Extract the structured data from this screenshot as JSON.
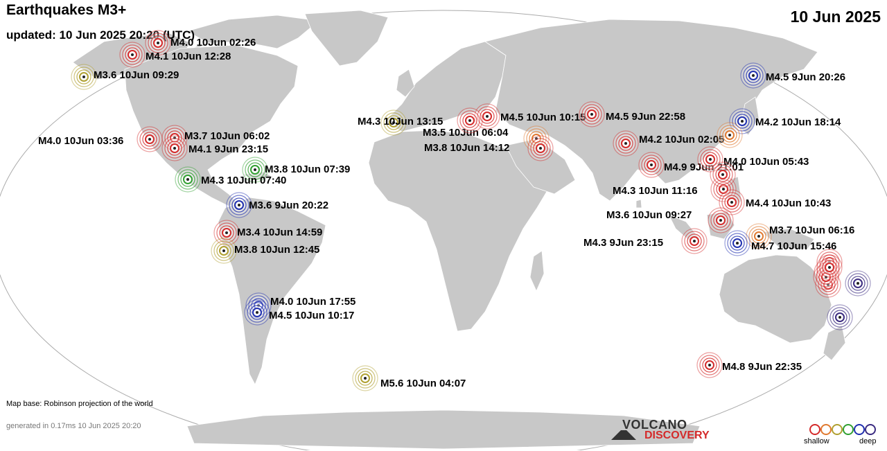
{
  "header": {
    "title": "Earthquakes M3+",
    "updated": "updated: 10 Jun 2025 20:20 (UTC)",
    "date": "10 Jun 2025"
  },
  "footer": {
    "map_base": "Map base: Robinson projection of the world",
    "generated": "generated in 0.17ms 10 Jun 2025 20:20",
    "logo_top": "VOLCANO",
    "logo_bottom": "DISCOVERY",
    "legend_shallow": "shallow",
    "legend_deep": "deep"
  },
  "colors": {
    "ocean": "#ffffff",
    "land": "#c8c8c8",
    "border": "#ffffff",
    "frame": "#aaaaaa",
    "depth": [
      "#d42a2a",
      "#e07a30",
      "#b0a030",
      "#30a030",
      "#1f2fb0",
      "#3a2a80"
    ]
  },
  "quakes": [
    {
      "label": "M4.0 10Jun 02:26",
      "depth": 0
    },
    {
      "label": "M4.1 10Jun 12:28",
      "depth": 0
    },
    {
      "label": "M3.6 10Jun 09:29",
      "depth": 2
    },
    {
      "label": "M3.7 10Jun 06:02",
      "depth": 0
    },
    {
      "label": "M4.0 10Jun 03:36",
      "depth": 0
    },
    {
      "label": "M4.1  9Jun 23:15",
      "depth": 0
    },
    {
      "label": "M3.8 10Jun 07:39",
      "depth": 3
    },
    {
      "label": "M4.3 10Jun 07:40",
      "depth": 3
    },
    {
      "label": "M3.6  9Jun 20:22",
      "depth": 4
    },
    {
      "label": "M3.4 10Jun 14:59",
      "depth": 0
    },
    {
      "label": "M3.8 10Jun 12:45",
      "depth": 2
    },
    {
      "label": "M4.0 10Jun 17:55",
      "depth": 4
    },
    {
      "label": "M4.5 10Jun 10:17",
      "depth": 4
    },
    {
      "label": "M5.6 10Jun 04:07",
      "depth": 2
    },
    {
      "label": "M4.3 10Jun 13:15",
      "depth": 2
    },
    {
      "label": "M4.5 10Jun 10:15",
      "depth": 0
    },
    {
      "label": "M3.5 10Jun 06:04",
      "depth": 1
    },
    {
      "label": "M3.8 10Jun 14:12",
      "depth": 0
    },
    {
      "label": "M4.5  9Jun 22:58",
      "depth": 0
    },
    {
      "label": "M4.2 10Jun 02:05",
      "depth": 0
    },
    {
      "label": "M4.9  9Jun 21:01",
      "depth": 0
    },
    {
      "label": "M4.5  9Jun 20:26",
      "depth": 4
    },
    {
      "label": "M4.2 10Jun 18:14",
      "depth": 4
    },
    {
      "label": "M4.0 10Jun 05:43",
      "depth": 0
    },
    {
      "label": "M4.3 10Jun 11:16",
      "depth": 0
    },
    {
      "label": "M4.4 10Jun 10:43",
      "depth": 0
    },
    {
      "label": "M3.6 10Jun 09:27",
      "depth": 0
    },
    {
      "label": "M4.3  9Jun 23:15",
      "depth": 0
    },
    {
      "label": "M3.7 10Jun 06:16",
      "depth": 1
    },
    {
      "label": "M4.7 10Jun 15:46",
      "depth": 4
    },
    {
      "label": "M4.8  9Jun 22:35",
      "depth": 0
    },
    {
      "label": "",
      "depth": 1
    },
    {
      "label": "",
      "depth": 0
    },
    {
      "label": "",
      "depth": 0
    },
    {
      "label": "",
      "depth": 0
    },
    {
      "label": "",
      "depth": 0
    },
    {
      "label": "",
      "depth": 0
    },
    {
      "label": "",
      "depth": 0
    },
    {
      "label": "",
      "depth": 0
    },
    {
      "label": "",
      "depth": 5
    },
    {
      "label": "",
      "depth": 5
    }
  ]
}
